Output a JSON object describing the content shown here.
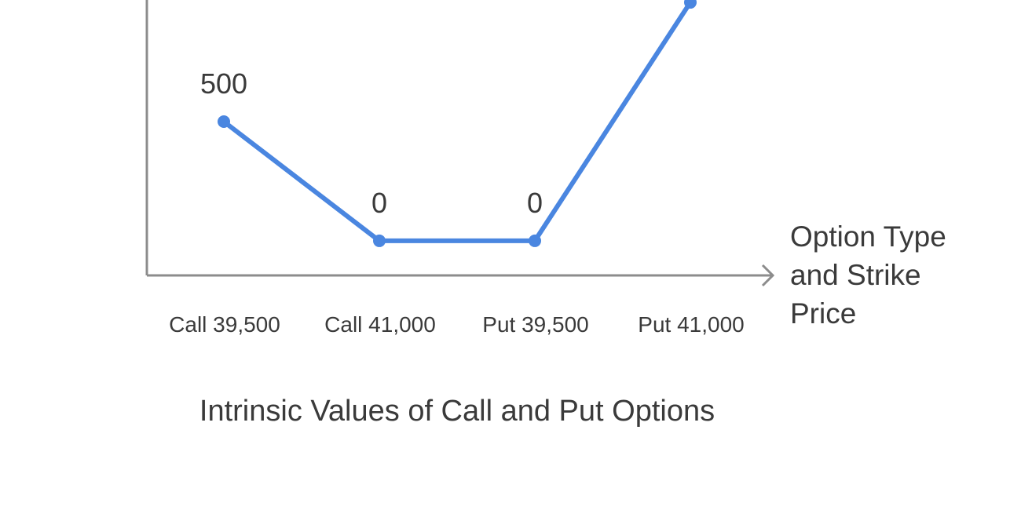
{
  "chart_data": {
    "type": "line",
    "title": "Intrinsic Values of Call and Put Options",
    "xlabel": "Option Type and Strike Price",
    "xlabel_lines": [
      "Option Type",
      "and Strike",
      "Price"
    ],
    "ylabel": "",
    "categories": [
      "Call 39,500",
      "Call 41,000",
      "Put 39,500",
      "Put 41,000"
    ],
    "series": [
      {
        "values": [
          500,
          0,
          0,
          1000
        ],
        "data_labels": [
          "500",
          "0",
          "0",
          ""
        ]
      }
    ],
    "ylim": [
      -145,
      1010
    ],
    "grid": false,
    "legend": "none",
    "colors": {
      "line": "#4a86e0",
      "axis": "#8c8c8c",
      "text": "#3a3a3a"
    }
  }
}
